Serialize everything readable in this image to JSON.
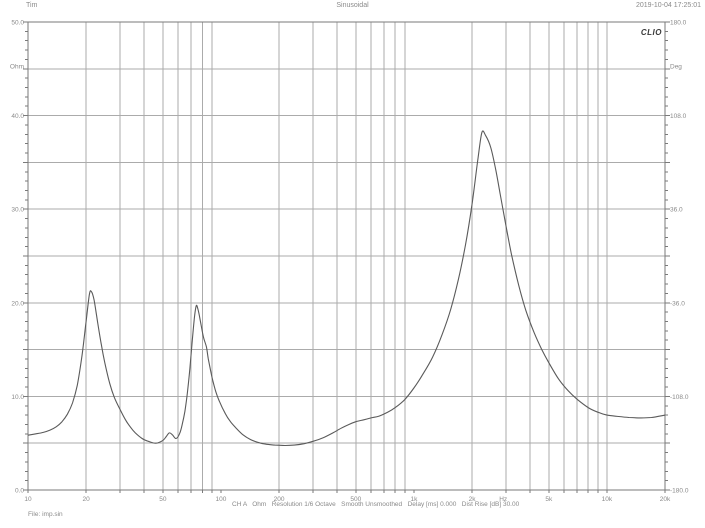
{
  "header": {
    "left": "Tim",
    "center": "Sinusoidal",
    "right": "2019-10-04 17:25:01"
  },
  "logo": "CLIO",
  "status_bar": {
    "text": "CH A   Ohm   Resolution 1/6 Octave   Smooth Unsmoothed   Delay [ms] 0.000   Dist Rise [dB] 30.00"
  },
  "file_label": "File: imp.sin",
  "colors": {
    "grid": "#ababab",
    "border": "#7a7a7a",
    "curve": "#5a5a5a",
    "text": "#8a8a8a",
    "tick": "#7a7a7a"
  },
  "chart_data": {
    "type": "line",
    "title": "Sinusoidal",
    "x_axis": {
      "scale": "log",
      "range": [
        10,
        20000
      ],
      "unit": "Hz",
      "labels": [
        [
          10,
          "10"
        ],
        [
          20,
          "20"
        ],
        [
          50,
          "50"
        ],
        [
          100,
          "100"
        ],
        [
          200,
          "200"
        ],
        [
          500,
          "500"
        ],
        [
          1000,
          "1k"
        ],
        [
          2000,
          "2k"
        ],
        [
          2900,
          "Hz"
        ],
        [
          5000,
          "5k"
        ],
        [
          10000,
          "10k"
        ],
        [
          20000,
          "20k"
        ]
      ]
    },
    "y_left": {
      "unit": "Ohm",
      "range": [
        0,
        50
      ],
      "gridline_step": 5,
      "labels": [
        [
          50,
          "50.0"
        ],
        [
          45.3,
          "Ohm"
        ],
        [
          40,
          "40.0"
        ],
        [
          30,
          "30.0"
        ],
        [
          20,
          "20.0"
        ],
        [
          10,
          "10.0"
        ],
        [
          0,
          "0.0"
        ]
      ]
    },
    "y_right": {
      "unit": "Deg",
      "range": [
        -180,
        180
      ],
      "labels": [
        [
          180,
          "180.0"
        ],
        [
          146,
          "Deg"
        ],
        [
          108,
          "108.0"
        ],
        [
          36,
          "36.0"
        ],
        [
          -36,
          "-36.0"
        ],
        [
          -108,
          "-108.0"
        ],
        [
          -180,
          "-180.0"
        ]
      ]
    },
    "legend": [],
    "grid": "on",
    "series": [
      {
        "name": "impedance-magnitude",
        "unit_x": "Hz",
        "unit_y": "Ohm",
        "points": [
          [
            10,
            5.85
          ],
          [
            11,
            6.0
          ],
          [
            12,
            6.15
          ],
          [
            13,
            6.4
          ],
          [
            14,
            6.75
          ],
          [
            15,
            7.3
          ],
          [
            16,
            8.1
          ],
          [
            17,
            9.3
          ],
          [
            18,
            11.2
          ],
          [
            19,
            14.2
          ],
          [
            20,
            18.0
          ],
          [
            20.8,
            20.9
          ],
          [
            21.3,
            21.2
          ],
          [
            22,
            20.3
          ],
          [
            23,
            17.8
          ],
          [
            24,
            15.5
          ],
          [
            25,
            13.6
          ],
          [
            26.5,
            11.4
          ],
          [
            28,
            9.9
          ],
          [
            30,
            8.6
          ],
          [
            32,
            7.5
          ],
          [
            34,
            6.7
          ],
          [
            36,
            6.1
          ],
          [
            39,
            5.5
          ],
          [
            42,
            5.2
          ],
          [
            46,
            5.0
          ],
          [
            50,
            5.3
          ],
          [
            52,
            5.7
          ],
          [
            54,
            6.1
          ],
          [
            56,
            5.9
          ],
          [
            58.5,
            5.5
          ],
          [
            61,
            6.0
          ],
          [
            63,
            7.0
          ],
          [
            65,
            8.4
          ],
          [
            67,
            10.4
          ],
          [
            69,
            13.0
          ],
          [
            71,
            16.0
          ],
          [
            73,
            18.6
          ],
          [
            74.5,
            19.7
          ],
          [
            76,
            19.3
          ],
          [
            78,
            18.2
          ],
          [
            81,
            16.4
          ],
          [
            84,
            15.3
          ],
          [
            86,
            14.0
          ],
          [
            90,
            12.0
          ],
          [
            94,
            10.5
          ],
          [
            98,
            9.5
          ],
          [
            105,
            8.2
          ],
          [
            112,
            7.3
          ],
          [
            120,
            6.6
          ],
          [
            130,
            5.9
          ],
          [
            142,
            5.4
          ],
          [
            155,
            5.1
          ],
          [
            170,
            4.9
          ],
          [
            190,
            4.8
          ],
          [
            215,
            4.75
          ],
          [
            240,
            4.8
          ],
          [
            270,
            4.95
          ],
          [
            300,
            5.2
          ],
          [
            340,
            5.6
          ],
          [
            380,
            6.1
          ],
          [
            420,
            6.6
          ],
          [
            460,
            7.0
          ],
          [
            500,
            7.3
          ],
          [
            550,
            7.5
          ],
          [
            600,
            7.7
          ],
          [
            660,
            7.9
          ],
          [
            730,
            8.3
          ],
          [
            800,
            8.8
          ],
          [
            900,
            9.7
          ],
          [
            1000,
            10.9
          ],
          [
            1100,
            12.2
          ],
          [
            1250,
            14.2
          ],
          [
            1400,
            16.6
          ],
          [
            1550,
            19.3
          ],
          [
            1700,
            22.5
          ],
          [
            1850,
            26.2
          ],
          [
            2000,
            30.5
          ],
          [
            2150,
            35.5
          ],
          [
            2250,
            38.2
          ],
          [
            2350,
            37.9
          ],
          [
            2500,
            36.6
          ],
          [
            2650,
            34.3
          ],
          [
            2800,
            31.6
          ],
          [
            3000,
            28.2
          ],
          [
            3200,
            25.2
          ],
          [
            3500,
            21.8
          ],
          [
            3800,
            19.2
          ],
          [
            4200,
            16.8
          ],
          [
            4600,
            15.0
          ],
          [
            5000,
            13.6
          ],
          [
            5600,
            11.9
          ],
          [
            6300,
            10.6
          ],
          [
            7000,
            9.7
          ],
          [
            8000,
            8.8
          ],
          [
            9000,
            8.3
          ],
          [
            10000,
            8.0
          ],
          [
            11500,
            7.85
          ],
          [
            13000,
            7.75
          ],
          [
            15000,
            7.7
          ],
          [
            17000,
            7.75
          ],
          [
            20000,
            8.0
          ]
        ]
      }
    ]
  }
}
